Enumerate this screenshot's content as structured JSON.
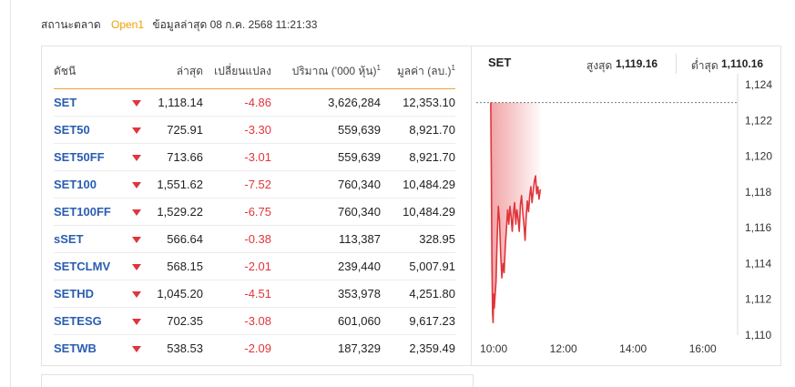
{
  "status": {
    "label": "สถานะตลาด",
    "market_state": "Open1",
    "updated": "ข้อมูลล่าสุด 08 ก.ค. 2568 11:21:33"
  },
  "table": {
    "headers": {
      "name": "ดัชนี",
      "last": "ล่าสุด",
      "change": "เปลี่ยนแปลง",
      "volume": "ปริมาณ ('000 หุ้น)",
      "value": "มูลค่า (ลบ.)",
      "footnote": "1"
    },
    "rows": [
      {
        "name": "SET",
        "last": "1,118.14",
        "change": "-4.86",
        "volume": "3,626,284",
        "value": "12,353.10"
      },
      {
        "name": "SET50",
        "last": "725.91",
        "change": "-3.30",
        "volume": "559,639",
        "value": "8,921.70"
      },
      {
        "name": "SET50FF",
        "last": "713.66",
        "change": "-3.01",
        "volume": "559,639",
        "value": "8,921.70"
      },
      {
        "name": "SET100",
        "last": "1,551.62",
        "change": "-7.52",
        "volume": "760,340",
        "value": "10,484.29"
      },
      {
        "name": "SET100FF",
        "last": "1,529.22",
        "change": "-6.75",
        "volume": "760,340",
        "value": "10,484.29"
      },
      {
        "name": "sSET",
        "last": "566.64",
        "change": "-0.38",
        "volume": "113,387",
        "value": "328.95"
      },
      {
        "name": "SETCLMV",
        "last": "568.15",
        "change": "-2.01",
        "volume": "239,440",
        "value": "5,007.91"
      },
      {
        "name": "SETHD",
        "last": "1,045.20",
        "change": "-4.51",
        "volume": "353,978",
        "value": "4,251.80"
      },
      {
        "name": "SETESG",
        "last": "702.35",
        "change": "-3.08",
        "volume": "601,060",
        "value": "9,617.23"
      },
      {
        "name": "SETWB",
        "last": "538.53",
        "change": "-2.09",
        "volume": "187,329",
        "value": "2,359.49"
      }
    ]
  },
  "chart_panel": {
    "symbol": "SET",
    "high_label": "สูงสุด",
    "high_value": "1,119.16",
    "low_label": "ต่ำสุด",
    "low_value": "1,110.16"
  },
  "colors": {
    "down": "#e0353b",
    "link": "#2a5db0",
    "accent": "#f0a000"
  },
  "chart_data": {
    "type": "area",
    "title": "SET",
    "xlabel": "",
    "ylabel": "",
    "x_ticks": [
      "10:00",
      "12:00",
      "14:00",
      "16:00"
    ],
    "y_ticks": [
      "1,110",
      "1,112",
      "1,114",
      "1,116",
      "1,118",
      "1,120",
      "1,122",
      "1,124"
    ],
    "ylim": [
      1110,
      1124
    ],
    "xlim": [
      "09:30",
      "17:00"
    ],
    "reference_line": 1123.0,
    "series": [
      {
        "x": [
          "09:55",
          "09:56",
          "09:57",
          "09:58",
          "09:59",
          "10:00",
          "10:01",
          "10:02",
          "10:04",
          "10:06",
          "10:08",
          "10:10",
          "10:12",
          "10:14",
          "10:16",
          "10:18",
          "10:20",
          "10:22",
          "10:24",
          "10:26",
          "10:28",
          "10:30",
          "10:32",
          "10:34",
          "10:36",
          "10:38",
          "10:40",
          "10:42",
          "10:44",
          "10:46",
          "10:48",
          "10:50",
          "10:52",
          "10:54",
          "10:56",
          "10:58",
          "11:00",
          "11:02",
          "11:04",
          "11:06",
          "11:08",
          "11:10",
          "11:12",
          "11:14",
          "11:16",
          "11:18",
          "11:20",
          "11:21"
        ],
        "y": [
          1123.0,
          1118.5,
          1114.0,
          1111.2,
          1110.7,
          1112.3,
          1111.5,
          1112.0,
          1113.0,
          1115.5,
          1117.2,
          1116.4,
          1114.5,
          1113.2,
          1114.0,
          1113.5,
          1115.0,
          1116.0,
          1117.0,
          1116.2,
          1117.2,
          1116.6,
          1115.8,
          1116.8,
          1117.4,
          1116.2,
          1117.0,
          1116.5,
          1115.8,
          1117.3,
          1117.8,
          1116.9,
          1116.2,
          1115.3,
          1116.6,
          1117.5,
          1116.9,
          1117.8,
          1118.3,
          1117.4,
          1118.0,
          1118.6,
          1118.9,
          1117.9,
          1118.3,
          1117.6,
          1118.1,
          1118.14
        ]
      }
    ]
  }
}
